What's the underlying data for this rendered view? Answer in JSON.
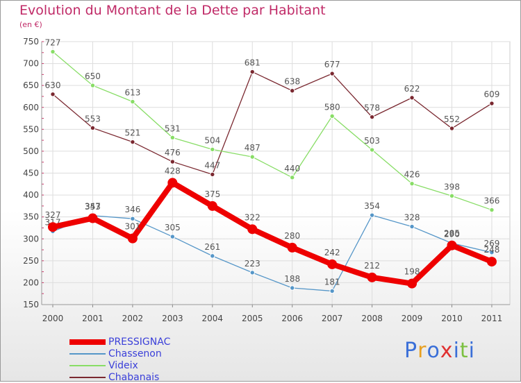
{
  "title": "Evolution du Montant de la Dette par Habitant",
  "subtitle": "(en €)",
  "logo": "Proxiti",
  "chart_data": {
    "type": "line",
    "title": "Evolution du Montant de la Dette par Habitant",
    "ylabel": "(en €)",
    "x": [
      "2000",
      "2001",
      "2002",
      "2003",
      "2004",
      "2005",
      "2006",
      "2007",
      "2008",
      "2009",
      "2010",
      "2011"
    ],
    "ylim": [
      150,
      750
    ],
    "yticks": [
      150,
      200,
      250,
      300,
      350,
      400,
      450,
      500,
      550,
      600,
      650,
      700,
      750
    ],
    "grid": true,
    "legend": "bottom-left",
    "series": [
      {
        "name": "PRESSIGNAC",
        "color": "#ee0000",
        "values": [
          327,
          347,
          301,
          428,
          375,
          322,
          280,
          242,
          212,
          198,
          285,
          248
        ]
      },
      {
        "name": "Chassenon",
        "color": "#5596c8",
        "values": [
          317,
          353,
          346,
          305,
          261,
          223,
          188,
          181,
          354,
          328,
          290,
          269
        ]
      },
      {
        "name": "Videix",
        "color": "#88dd66",
        "values": [
          727,
          650,
          613,
          531,
          504,
          487,
          440,
          580,
          503,
          426,
          398,
          366
        ]
      },
      {
        "name": "Chabanais",
        "color": "#7a2830",
        "values": [
          630,
          553,
          521,
          476,
          447,
          681,
          638,
          677,
          578,
          622,
          552,
          609
        ]
      }
    ]
  }
}
